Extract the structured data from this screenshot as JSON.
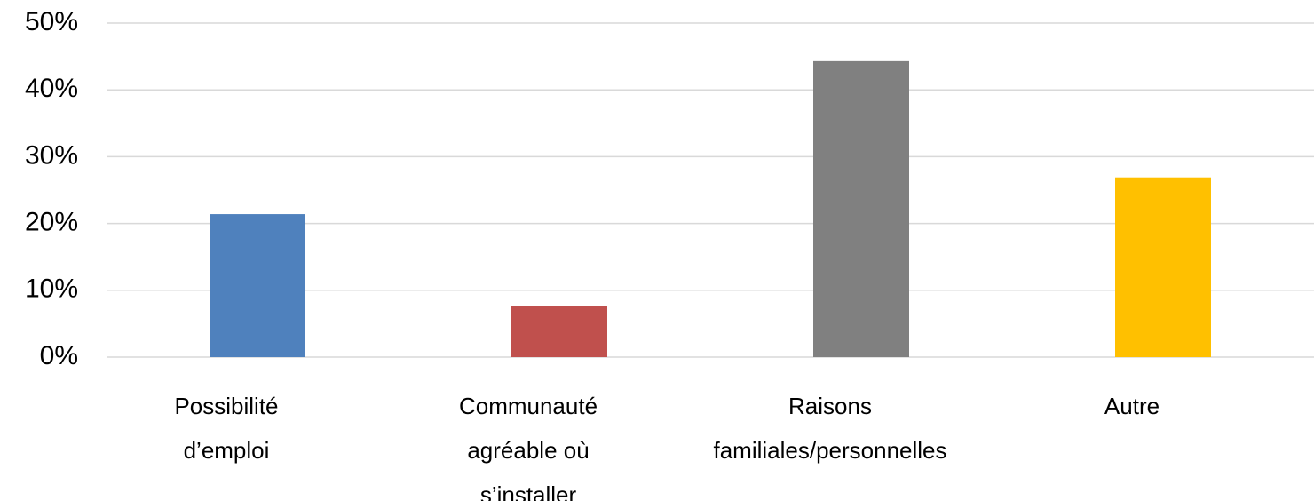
{
  "chart_data": {
    "type": "bar",
    "categories": [
      "Possibilité\nd’emploi",
      "Communauté\nagréable où\ns’installer",
      "Raisons\nfamiliales/personnelles",
      "Autre"
    ],
    "values": [
      21.4,
      7.7,
      44.3,
      26.9
    ],
    "colors": [
      "#4f81bd",
      "#c0504d",
      "#808080",
      "#ffc000"
    ],
    "ylim": [
      0,
      50
    ],
    "yticks": [
      {
        "value": 0,
        "label": "0%"
      },
      {
        "value": 10,
        "label": "10%"
      },
      {
        "value": 20,
        "label": "20%"
      },
      {
        "value": 30,
        "label": "30%"
      },
      {
        "value": 40,
        "label": "40%"
      },
      {
        "value": 50,
        "label": "50%"
      }
    ],
    "grid": true
  }
}
